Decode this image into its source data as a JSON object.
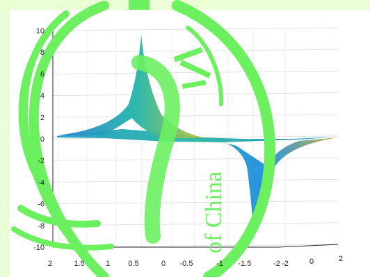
{
  "chart_data": {
    "type": "surface",
    "projection": "3d",
    "grid": true,
    "colormap": "parula",
    "z_ticks": [
      10,
      8,
      6,
      4,
      2,
      0,
      -2,
      -4,
      -6,
      -8,
      -10
    ],
    "zlim": [
      -10,
      10
    ],
    "x_ticks": [
      "2",
      "1.5",
      "1",
      "0.5",
      "0",
      "-0.5",
      "-1",
      "-1.5",
      "-2"
    ],
    "y_ticks": [
      "-2",
      "0",
      "2"
    ],
    "xlim": [
      -2,
      2
    ],
    "ylim": [
      -2,
      2
    ],
    "peak": {
      "x": 0.5,
      "z": 9.5
    },
    "trough": {
      "x": -1.5,
      "z": -9.3
    },
    "baseline_z": 0
  },
  "watermark": {
    "text": "of China",
    "color": "#6cf060"
  }
}
